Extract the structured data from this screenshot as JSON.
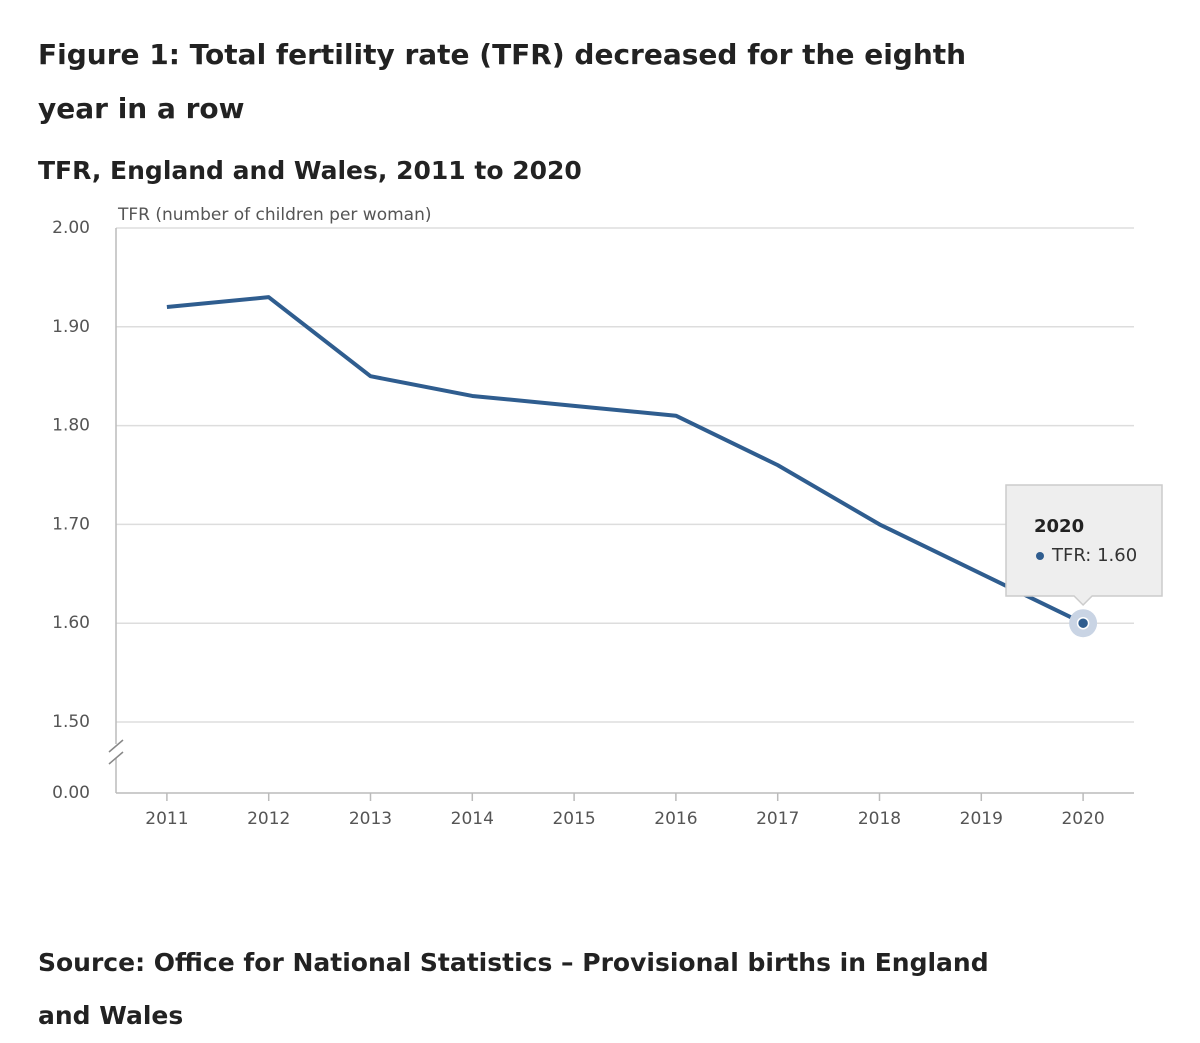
{
  "chart_data": {
    "type": "line",
    "title": "Figure 1: Total fertility rate (TFR) decreased for the eighth year in a row",
    "subtitle": "TFR, England and Wales, 2011 to 2020",
    "y_label": "TFR (number of children per woman)",
    "source": "Source: Office for National Statistics – Provisional births in England and Wales",
    "categories": [
      "2011",
      "2012",
      "2013",
      "2014",
      "2015",
      "2016",
      "2017",
      "2018",
      "2019",
      "2020"
    ],
    "series": [
      {
        "name": "TFR",
        "color": "#2f5d8f",
        "values": [
          1.92,
          1.93,
          1.85,
          1.83,
          1.82,
          1.81,
          1.76,
          1.7,
          1.65,
          1.6
        ]
      }
    ],
    "ylim": [
      1.5,
      2.0
    ],
    "yticks": [
      {
        "value": 2.0,
        "label": "2.00"
      },
      {
        "value": 1.9,
        "label": "1.90"
      },
      {
        "value": 1.8,
        "label": "1.80"
      },
      {
        "value": 1.7,
        "label": "1.70"
      },
      {
        "value": 1.6,
        "label": "1.60"
      },
      {
        "value": 1.5,
        "label": "1.50"
      },
      {
        "value": 0,
        "label": "0.00"
      }
    ],
    "axis_break": true,
    "grid": true,
    "tooltip": {
      "title": "2020",
      "text": "TFR: 1.60"
    }
  }
}
